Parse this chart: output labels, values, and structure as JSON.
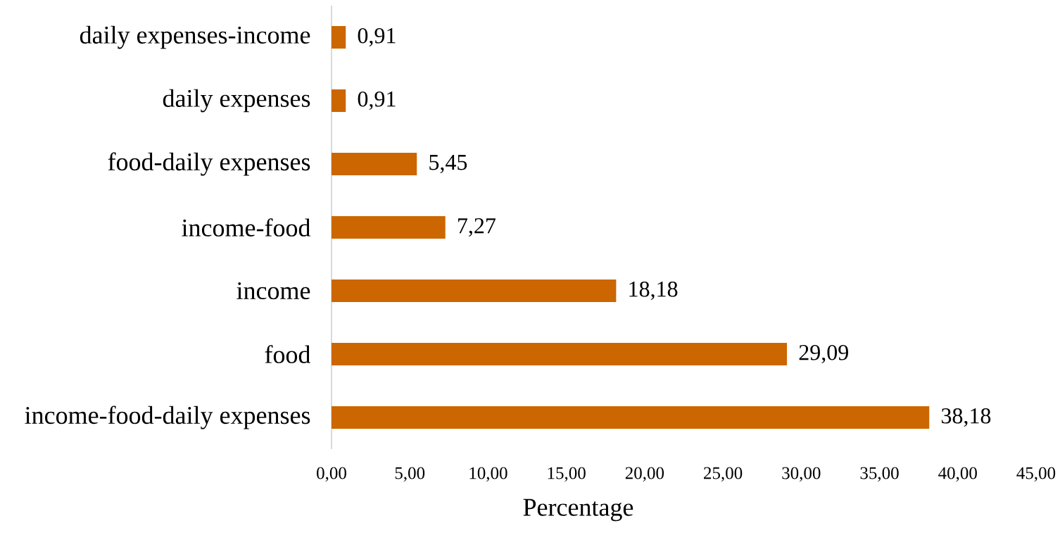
{
  "chart_data": {
    "type": "bar",
    "orientation": "horizontal",
    "xlabel": "Percentage",
    "categories": [
      "daily expenses-income",
      "daily expenses",
      "food-daily expenses",
      "income-food",
      "income",
      "food",
      "income-food-daily expenses"
    ],
    "values": [
      0.91,
      0.91,
      5.45,
      7.27,
      18.18,
      29.09,
      38.18
    ],
    "value_labels": [
      "0,91",
      "0,91",
      "5,45",
      "7,27",
      "18,18",
      "29,09",
      "38,18"
    ],
    "color": "#cc6600",
    "xlim": [
      0,
      45
    ],
    "xticks": [
      {
        "value": 0,
        "label": "0,00"
      },
      {
        "value": 5,
        "label": "5,00"
      },
      {
        "value": 10,
        "label": "10,00"
      },
      {
        "value": 15,
        "label": "15,00"
      },
      {
        "value": 20,
        "label": "20,00"
      },
      {
        "value": 25,
        "label": "25,00"
      },
      {
        "value": 30,
        "label": "30,00"
      },
      {
        "value": 35,
        "label": "35,00"
      },
      {
        "value": 40,
        "label": "40,00"
      },
      {
        "value": 45,
        "label": "45,00"
      }
    ],
    "grid": false
  }
}
